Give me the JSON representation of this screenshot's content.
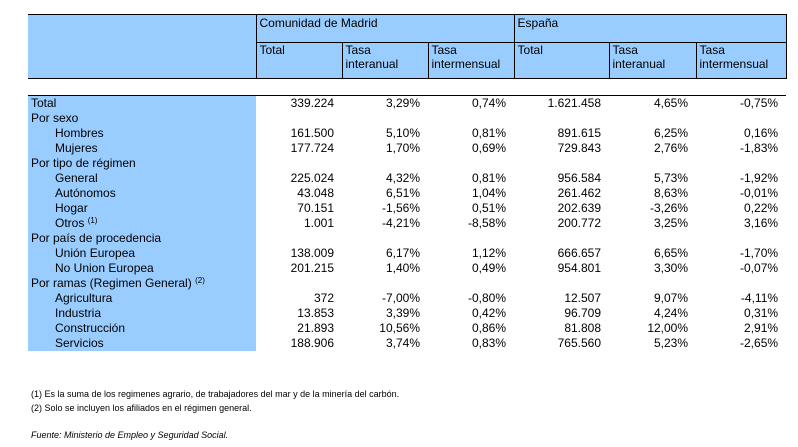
{
  "header": {
    "madrid": "Comunidad de Madrid",
    "spain": "España",
    "total": "Total",
    "tasa": "Tasa",
    "interanual": "interanual",
    "intermensual": "intermensual"
  },
  "rows": [
    {
      "label": "Total",
      "values": [
        "339.224",
        "3,29%",
        "0,74%",
        "1.621.458",
        "4,65%",
        "-0,75%"
      ]
    },
    {
      "label": "Por sexo",
      "values": []
    },
    {
      "label": "Hombres",
      "values": [
        "161.500",
        "5,10%",
        "0,81%",
        "891.615",
        "6,25%",
        "0,16%"
      ]
    },
    {
      "label": "Mujeres",
      "values": [
        "177.724",
        "1,70%",
        "0,69%",
        "729.843",
        "2,76%",
        "-1,83%"
      ]
    },
    {
      "label": "Por tipo de régimen",
      "values": []
    },
    {
      "label": "General",
      "values": [
        "225.024",
        "4,32%",
        "0,81%",
        "956.584",
        "5,73%",
        "-1,92%"
      ]
    },
    {
      "label": "Autónomos",
      "values": [
        "43.048",
        "6,51%",
        "1,04%",
        "261.462",
        "8,63%",
        "-0,01%"
      ]
    },
    {
      "label": "Hogar",
      "values": [
        "70.151",
        "-1,56%",
        "0,51%",
        "202.639",
        "-3,26%",
        "0,22%"
      ]
    },
    {
      "label": "Otros",
      "note": "(1)",
      "values": [
        "1.001",
        "-4,21%",
        "-8,58%",
        "200.772",
        "3,25%",
        "3,16%"
      ]
    },
    {
      "label": "Por país de procedencia",
      "values": []
    },
    {
      "label": "Unión Europea",
      "values": [
        "138.009",
        "6,17%",
        "1,12%",
        "666.657",
        "6,65%",
        "-1,70%"
      ]
    },
    {
      "label": "No Union Europea",
      "values": [
        "201.215",
        "1,40%",
        "0,49%",
        "954.801",
        "3,30%",
        "-0,07%"
      ]
    },
    {
      "label": "Por ramas (Regimen General)",
      "note": "(2)",
      "values": []
    },
    {
      "label": "Agricultura",
      "values": [
        "372",
        "-7,00%",
        "-0,80%",
        "12.507",
        "9,07%",
        "-4,11%"
      ]
    },
    {
      "label": "Industria",
      "values": [
        "13.853",
        "3,39%",
        "0,42%",
        "96.709",
        "4,24%",
        "0,31%"
      ]
    },
    {
      "label": "Construcción",
      "values": [
        "21.893",
        "10,56%",
        "0,86%",
        "81.808",
        "12,00%",
        "2,91%"
      ]
    },
    {
      "label": "Servicios",
      "values": [
        "188.906",
        "3,74%",
        "0,83%",
        "765.560",
        "5,23%",
        "-2,65%"
      ]
    }
  ],
  "notes": {
    "n1": "(1) Es la suma de los regimenes  agrario, de trabajadores del mar y de la minería del carbón.",
    "n2": "(2) Solo se incluyen los afiliados en el régimen general."
  },
  "source": "Fuente: Ministerio de Empleo y Seguridad Social.",
  "colors": {
    "header_fill": "#99ccff"
  }
}
